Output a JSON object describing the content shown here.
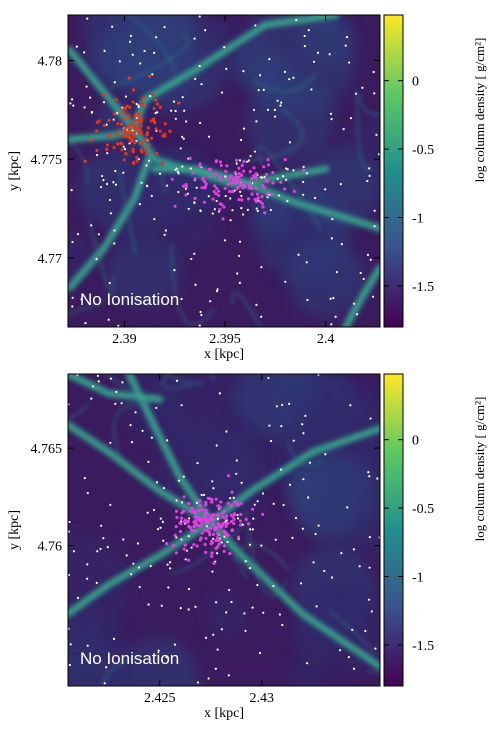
{
  "chart_data": [
    {
      "type": "heatmap",
      "xlabel": "x [kpc]",
      "ylabel": "y [kpc]",
      "colorbar_label": "log column density [ g/cm²]",
      "annotation": "No Ionisation",
      "xlim": [
        2.3872,
        2.4027
      ],
      "ylim": [
        4.7665,
        4.7823
      ],
      "xticks": [
        2.39,
        2.395,
        2.4
      ],
      "xtick_labels": [
        "2.39",
        "2.395",
        "2.4"
      ],
      "yticks": [
        4.77,
        4.775,
        4.78
      ],
      "ytick_labels": [
        "4.77",
        "4.775",
        "4.78"
      ],
      "colorbar_range": [
        -1.8,
        0.48
      ],
      "colorbar_ticks": [
        0,
        -0.5,
        -1,
        -1.5
      ],
      "colorbar_tick_labels": [
        "0",
        "-0.5",
        "-1",
        "-1.5"
      ],
      "star_clusters": [
        {
          "color": "#e8341c",
          "x": 2.3905,
          "y": 4.7765,
          "spread_x": 0.0008,
          "spread_y": 0.0009,
          "count": 120
        },
        {
          "color": "#e040e0",
          "x": 2.3955,
          "y": 4.7737,
          "spread_x": 0.0012,
          "spread_y": 0.0007,
          "count": 120
        }
      ],
      "filaments": [
        {
          "x": [
            2.3873,
            2.3885,
            2.3905,
            2.3915,
            2.3955,
            2.4
          ],
          "y": [
            4.7805,
            4.779,
            4.7765,
            4.775,
            4.7737,
            4.7745
          ]
        },
        {
          "x": [
            2.3873,
            2.389,
            2.3905,
            2.3912
          ],
          "y": [
            4.7685,
            4.7705,
            4.773,
            4.775
          ]
        },
        {
          "x": [
            2.3915,
            2.3935,
            2.3955,
            2.3985,
            2.4027
          ],
          "y": [
            4.7745,
            4.7745,
            4.774,
            4.7728,
            4.7715
          ]
        },
        {
          "x": [
            2.3905,
            2.391,
            2.3935,
            2.397,
            2.4005
          ],
          "y": [
            4.7765,
            4.778,
            4.7795,
            4.7818,
            4.7823
          ]
        },
        {
          "x": [
            2.3873,
            2.3895,
            2.3905
          ],
          "y": [
            4.776,
            4.7762,
            4.7765
          ]
        },
        {
          "x": [
            2.401,
            2.4018,
            2.4027
          ],
          "y": [
            4.7665,
            4.768,
            4.7695
          ]
        }
      ]
    },
    {
      "type": "heatmap",
      "xlabel": "x [kpc]",
      "ylabel": "y [kpc]",
      "colorbar_label": "log column density [ g/cm²]",
      "annotation": "No Ionisation",
      "xlim": [
        2.4205,
        2.4358
      ],
      "ylim": [
        4.7528,
        4.7688
      ],
      "xticks": [
        2.425,
        2.43
      ],
      "xtick_labels": [
        "2.425",
        "2.43"
      ],
      "yticks": [
        4.76,
        4.765
      ],
      "ytick_labels": [
        "4.76",
        "4.765"
      ],
      "colorbar_range": [
        -1.8,
        0.48
      ],
      "colorbar_ticks": [
        0,
        -0.5,
        -1,
        -1.5
      ],
      "colorbar_tick_labels": [
        "0",
        "-0.5",
        "-1",
        "-1.5"
      ],
      "star_clusters": [
        {
          "color": "#e040e0",
          "x": 2.4275,
          "y": 4.7612,
          "spread_x": 0.0009,
          "spread_y": 0.0007,
          "count": 170
        }
      ],
      "filaments": [
        {
          "x": [
            2.4205,
            2.4225,
            2.425,
            2.4275
          ],
          "y": [
            4.7662,
            4.7648,
            4.7628,
            4.7612
          ]
        },
        {
          "x": [
            2.4235,
            2.4248,
            2.426,
            2.4275
          ],
          "y": [
            4.7688,
            4.766,
            4.7635,
            4.7612
          ]
        },
        {
          "x": [
            2.4275,
            2.429,
            2.432,
            2.4358
          ],
          "y": [
            4.7612,
            4.7595,
            4.7565,
            4.7538
          ]
        },
        {
          "x": [
            2.4275,
            2.425,
            2.4225,
            2.4205
          ],
          "y": [
            4.7612,
            4.7595,
            4.758,
            4.7565
          ]
        },
        {
          "x": [
            2.4275,
            2.4295,
            2.4325,
            2.4358
          ],
          "y": [
            4.7612,
            4.7628,
            4.7648,
            4.766
          ]
        },
        {
          "x": [
            2.4205,
            2.4225,
            2.425
          ],
          "y": [
            4.7688,
            4.7678,
            4.7675
          ]
        }
      ]
    }
  ]
}
